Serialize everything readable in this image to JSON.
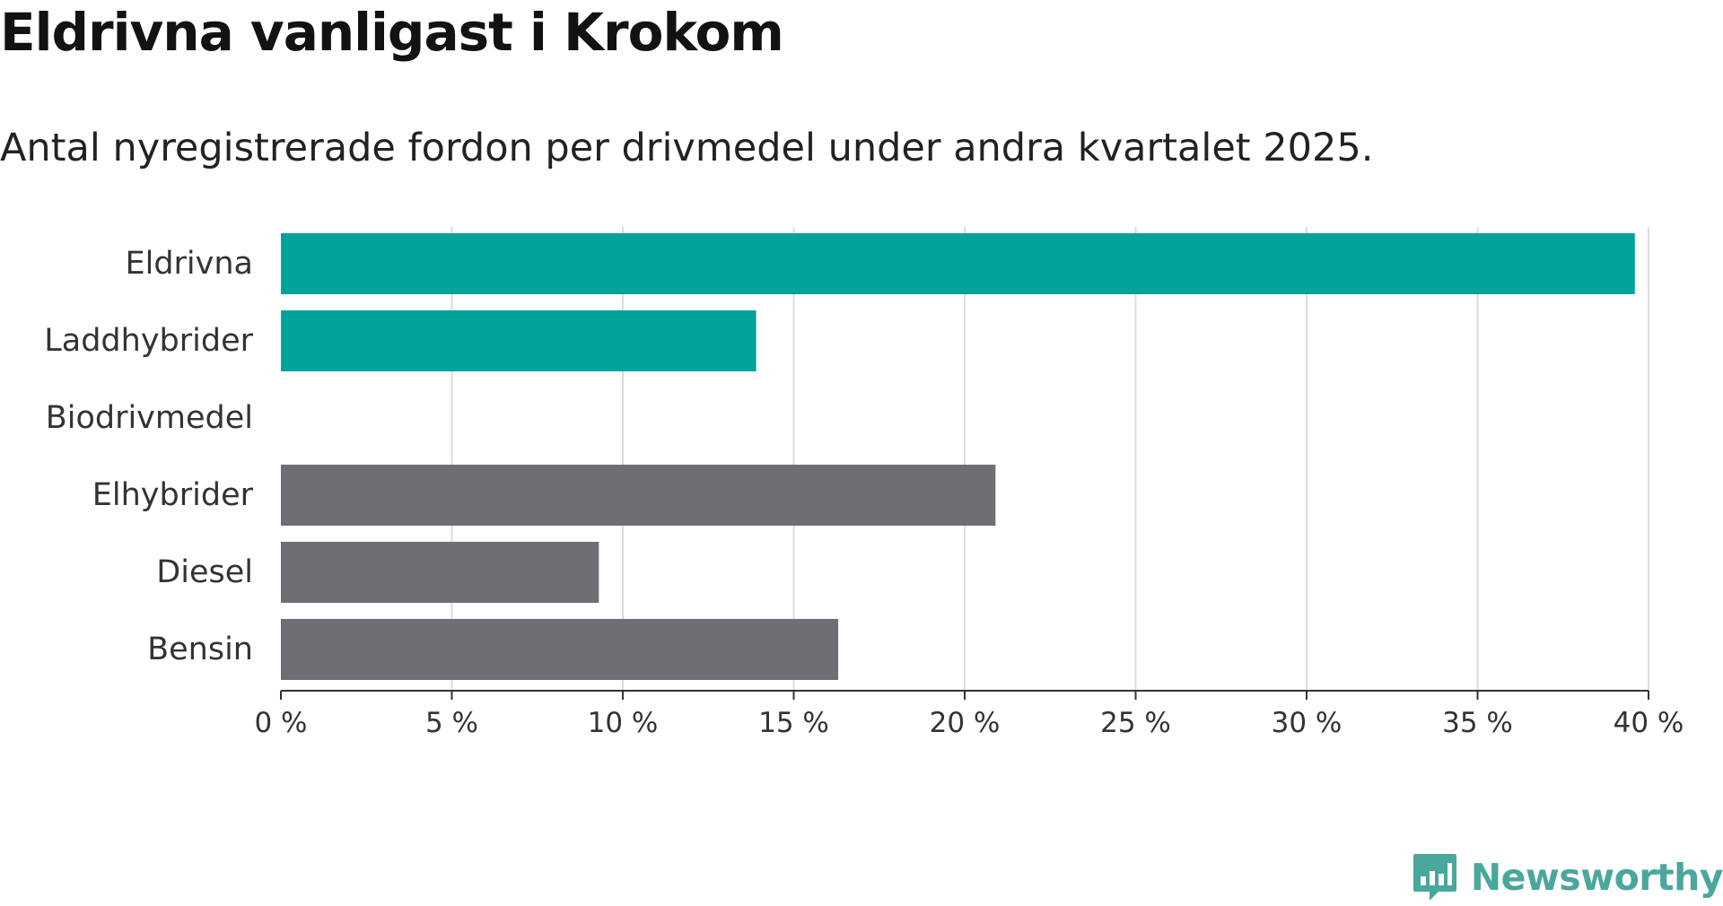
{
  "header": {
    "title": "Eldrivna vanligast i Krokom",
    "subtitle": "Antal nyregistrerade fordon per drivmedel under andra kvartalet 2025."
  },
  "chart_data": {
    "type": "bar",
    "orientation": "horizontal",
    "categories": [
      "Eldrivna",
      "Laddhybrider",
      "Biodrivmedel",
      "Elhybrider",
      "Diesel",
      "Bensin"
    ],
    "values": [
      39.6,
      13.9,
      0,
      20.9,
      9.3,
      16.3
    ],
    "bar_colors": [
      "#00a39a",
      "#00a39a",
      "#00a39a",
      "#6e6e74",
      "#6e6e74",
      "#6e6e74"
    ],
    "xlim": [
      0,
      40
    ],
    "xticks": [
      0,
      5,
      10,
      15,
      20,
      25,
      30,
      35,
      40
    ],
    "tick_labels": [
      "0 %",
      "5 %",
      "10 %",
      "15 %",
      "20 %",
      "25 %",
      "30 %",
      "35 %",
      "40 %"
    ],
    "grid": "vertical"
  },
  "branding": {
    "logo_icon": "newsworthy-logo-icon",
    "logo_text": "Newsworthy",
    "logo_color": "#4aa79c"
  },
  "colors": {
    "accent": "#00a39a",
    "neutral": "#6e6e74",
    "grid": "#dddddd",
    "axis": "#333333"
  }
}
